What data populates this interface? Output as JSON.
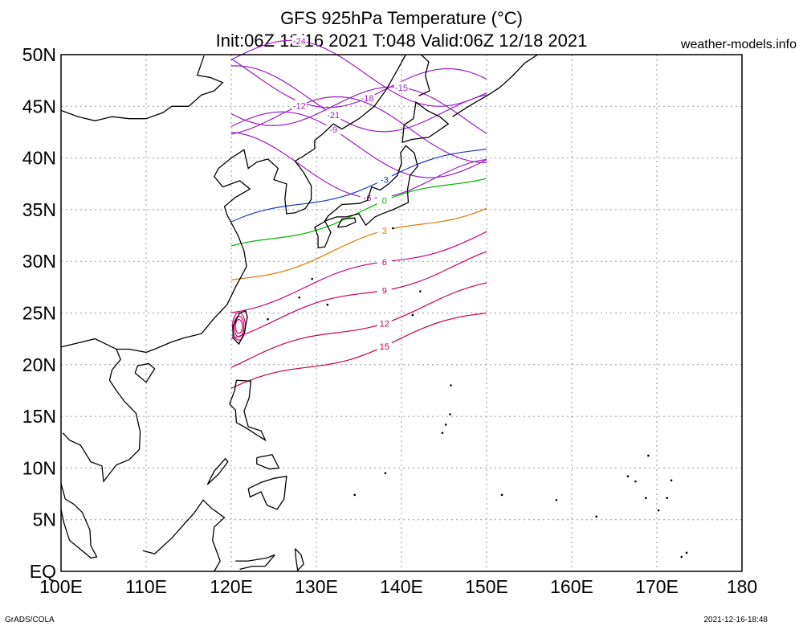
{
  "header": {
    "title_line1": "GFS 925hPa Temperature (°C)",
    "title_line2": "Init:06Z 12/16 2021 T:048 Valid:06Z 12/18 2021",
    "site": "weather-models.info"
  },
  "footer": {
    "left": "GrADS/COLA",
    "right": "2021-12-16-18:48"
  },
  "map": {
    "lon_range": [
      100,
      180
    ],
    "lat_range": [
      0,
      50
    ],
    "grid": true,
    "lat_ticks": [
      "EQ",
      "5N",
      "10N",
      "15N",
      "20N",
      "25N",
      "30N",
      "35N",
      "40N",
      "45N",
      "50N"
    ],
    "lon_ticks": [
      "100E",
      "110E",
      "120E",
      "130E",
      "140E",
      "150E",
      "160E",
      "170E",
      "180"
    ],
    "field_domain_lon": [
      120,
      150
    ],
    "contours": [
      {
        "value": "-24",
        "color": "#9a1ec8",
        "lat": 49.5
      },
      {
        "value": "-21",
        "color": "#9a1ec8",
        "lat": 46.5
      },
      {
        "value": "-18",
        "color": "#9a1ec8",
        "lat": 48.3
      },
      {
        "value": "-15",
        "color": "#9a1ec8",
        "lat": 46.0
      },
      {
        "value": "-12",
        "color": "#9a1ec8",
        "lat": 44.5
      },
      {
        "value": "-9",
        "color": "#9a1ec8",
        "lat": 42.5
      },
      {
        "value": "-6",
        "color": "#9a1ec8",
        "lat": 40.0
      },
      {
        "value": "-3",
        "color": "#1e3cc8",
        "lat": 37.0
      },
      {
        "value": "0",
        "color": "#00b400",
        "lat": 34.5
      },
      {
        "value": "3",
        "color": "#e07800",
        "lat": 31.5
      },
      {
        "value": "6",
        "color": "#c80080",
        "lat": 28.8
      },
      {
        "value": "9",
        "color": "#c80064",
        "lat": 26.5
      },
      {
        "value": "12",
        "color": "#c80050",
        "lat": 23.5
      },
      {
        "value": "15",
        "color": "#c8003c",
        "lat": 21.0
      }
    ]
  }
}
